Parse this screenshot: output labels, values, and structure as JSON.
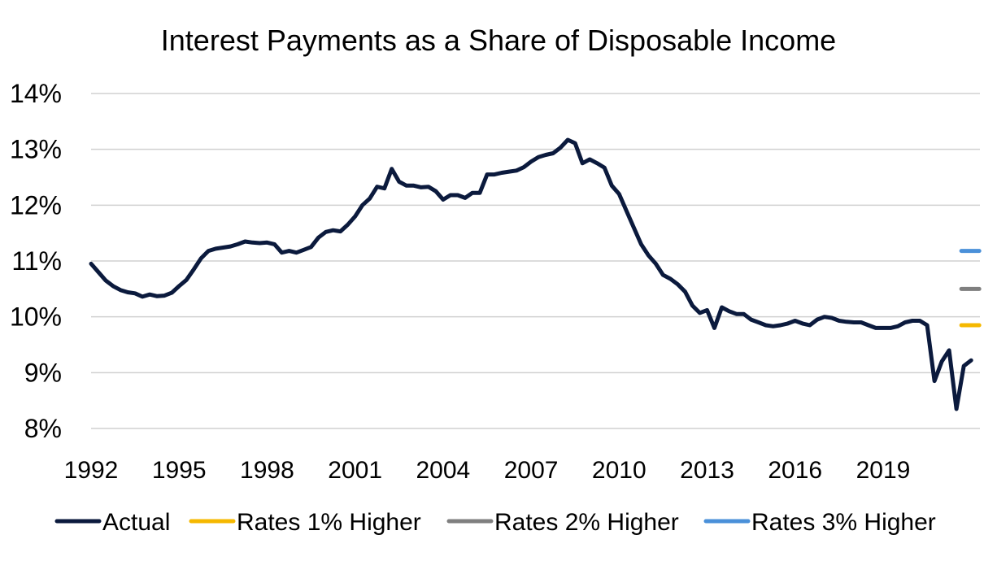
{
  "chart_data": {
    "type": "line",
    "title": "Interest Payments as a Share of Disposable Income",
    "xlabel": "",
    "ylabel": "",
    "ylim": [
      8,
      14
    ],
    "y_ticks": [
      "8%",
      "9%",
      "10%",
      "11%",
      "12%",
      "13%",
      "14%"
    ],
    "x_ticks": [
      "1992",
      "1995",
      "1998",
      "2001",
      "2004",
      "2007",
      "2010",
      "2013",
      "2016",
      "2019"
    ],
    "xlim": [
      1992,
      2021.5
    ],
    "grid": true,
    "legend_position": "bottom",
    "series": [
      {
        "name": "Actual",
        "color": "#0b1a3d",
        "points": [
          [
            1992.0,
            10.95
          ],
          [
            1992.25,
            10.8
          ],
          [
            1992.5,
            10.65
          ],
          [
            1992.75,
            10.55
          ],
          [
            1993.0,
            10.48
          ],
          [
            1993.25,
            10.44
          ],
          [
            1993.5,
            10.42
          ],
          [
            1993.75,
            10.36
          ],
          [
            1994.0,
            10.4
          ],
          [
            1994.25,
            10.37
          ],
          [
            1994.5,
            10.38
          ],
          [
            1994.75,
            10.43
          ],
          [
            1995.0,
            10.55
          ],
          [
            1995.25,
            10.66
          ],
          [
            1995.5,
            10.85
          ],
          [
            1995.75,
            11.05
          ],
          [
            1996.0,
            11.18
          ],
          [
            1996.25,
            11.22
          ],
          [
            1996.5,
            11.24
          ],
          [
            1996.75,
            11.26
          ],
          [
            1997.0,
            11.3
          ],
          [
            1997.25,
            11.35
          ],
          [
            1997.5,
            11.33
          ],
          [
            1997.75,
            11.32
          ],
          [
            1998.0,
            11.33
          ],
          [
            1998.25,
            11.3
          ],
          [
            1998.5,
            11.15
          ],
          [
            1998.75,
            11.18
          ],
          [
            1999.0,
            11.15
          ],
          [
            1999.25,
            11.2
          ],
          [
            1999.5,
            11.25
          ],
          [
            1999.75,
            11.42
          ],
          [
            2000.0,
            11.52
          ],
          [
            2000.25,
            11.55
          ],
          [
            2000.5,
            11.53
          ],
          [
            2000.75,
            11.65
          ],
          [
            2001.0,
            11.8
          ],
          [
            2001.25,
            12.0
          ],
          [
            2001.5,
            12.12
          ],
          [
            2001.75,
            12.33
          ],
          [
            2002.0,
            12.3
          ],
          [
            2002.25,
            12.65
          ],
          [
            2002.5,
            12.42
          ],
          [
            2002.75,
            12.35
          ],
          [
            2003.0,
            12.35
          ],
          [
            2003.25,
            12.32
          ],
          [
            2003.5,
            12.33
          ],
          [
            2003.75,
            12.25
          ],
          [
            2004.0,
            12.1
          ],
          [
            2004.25,
            12.18
          ],
          [
            2004.5,
            12.18
          ],
          [
            2004.75,
            12.13
          ],
          [
            2005.0,
            12.22
          ],
          [
            2005.25,
            12.22
          ],
          [
            2005.5,
            12.55
          ],
          [
            2005.75,
            12.55
          ],
          [
            2006.0,
            12.58
          ],
          [
            2006.25,
            12.6
          ],
          [
            2006.5,
            12.62
          ],
          [
            2006.75,
            12.68
          ],
          [
            2007.0,
            12.78
          ],
          [
            2007.25,
            12.86
          ],
          [
            2007.5,
            12.9
          ],
          [
            2007.75,
            12.93
          ],
          [
            2008.0,
            13.03
          ],
          [
            2008.25,
            13.17
          ],
          [
            2008.5,
            13.11
          ],
          [
            2008.75,
            12.75
          ],
          [
            2009.0,
            12.82
          ],
          [
            2009.25,
            12.75
          ],
          [
            2009.5,
            12.67
          ],
          [
            2009.75,
            12.35
          ],
          [
            2010.0,
            12.2
          ],
          [
            2010.25,
            11.9
          ],
          [
            2010.5,
            11.6
          ],
          [
            2010.75,
            11.3
          ],
          [
            2011.0,
            11.1
          ],
          [
            2011.25,
            10.95
          ],
          [
            2011.5,
            10.75
          ],
          [
            2011.75,
            10.68
          ],
          [
            2012.0,
            10.58
          ],
          [
            2012.25,
            10.45
          ],
          [
            2012.5,
            10.2
          ],
          [
            2012.75,
            10.07
          ],
          [
            2013.0,
            10.12
          ],
          [
            2013.25,
            9.8
          ],
          [
            2013.5,
            10.17
          ],
          [
            2013.75,
            10.1
          ],
          [
            2014.0,
            10.05
          ],
          [
            2014.25,
            10.05
          ],
          [
            2014.5,
            9.95
          ],
          [
            2014.75,
            9.9
          ],
          [
            2015.0,
            9.85
          ],
          [
            2015.25,
            9.83
          ],
          [
            2015.5,
            9.85
          ],
          [
            2015.75,
            9.88
          ],
          [
            2016.0,
            9.93
          ],
          [
            2016.25,
            9.88
          ],
          [
            2016.5,
            9.85
          ],
          [
            2016.75,
            9.95
          ],
          [
            2017.0,
            10.0
          ],
          [
            2017.25,
            9.98
          ],
          [
            2017.5,
            9.93
          ],
          [
            2017.75,
            9.91
          ],
          [
            2018.0,
            9.9
          ],
          [
            2018.25,
            9.9
          ],
          [
            2018.5,
            9.85
          ],
          [
            2018.75,
            9.8
          ],
          [
            2019.0,
            9.8
          ],
          [
            2019.25,
            9.8
          ],
          [
            2019.5,
            9.83
          ],
          [
            2019.75,
            9.9
          ],
          [
            2020.0,
            9.93
          ],
          [
            2020.25,
            9.93
          ],
          [
            2020.5,
            9.85
          ],
          [
            2020.75,
            8.85
          ],
          [
            2021.0,
            9.2
          ],
          [
            2021.25,
            9.4
          ],
          [
            2021.5,
            8.35
          ],
          [
            2021.75,
            9.12
          ],
          [
            2022.0,
            9.22
          ]
        ]
      },
      {
        "name": "Rates 1% Higher",
        "color": "#f5b800",
        "points": [
          [
            2022.0,
            9.85
          ]
        ]
      },
      {
        "name": "Rates 2% Higher",
        "color": "#7f7f7f",
        "points": [
          [
            2022.0,
            10.5
          ]
        ]
      },
      {
        "name": "Rates 3% Higher",
        "color": "#4a90d9",
        "points": [
          [
            2022.0,
            11.18
          ]
        ]
      }
    ]
  }
}
